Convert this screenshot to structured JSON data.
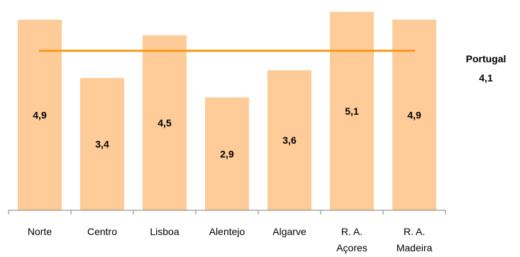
{
  "chart_data": {
    "type": "bar",
    "categories": [
      [
        "Norte"
      ],
      [
        "Centro"
      ],
      [
        "Lisboa"
      ],
      [
        "Alentejo"
      ],
      [
        "Algarve"
      ],
      [
        "R. A.",
        "Açores"
      ],
      [
        "R. A.",
        "Madeira"
      ]
    ],
    "values": [
      4.9,
      3.4,
      4.5,
      2.9,
      3.6,
      5.1,
      4.9
    ],
    "value_labels": [
      "4,9",
      "3,4",
      "4,5",
      "2,9",
      "3,6",
      "5,1",
      "4,9"
    ],
    "ylim": [
      0,
      5.15
    ],
    "grid": false,
    "reference_line": {
      "value": 4.1,
      "label": "Portugal",
      "value_label": "4,1"
    },
    "colors": {
      "bar": "#FFCC99",
      "reference_line": "#F59A1C",
      "axis": "#808080"
    }
  }
}
